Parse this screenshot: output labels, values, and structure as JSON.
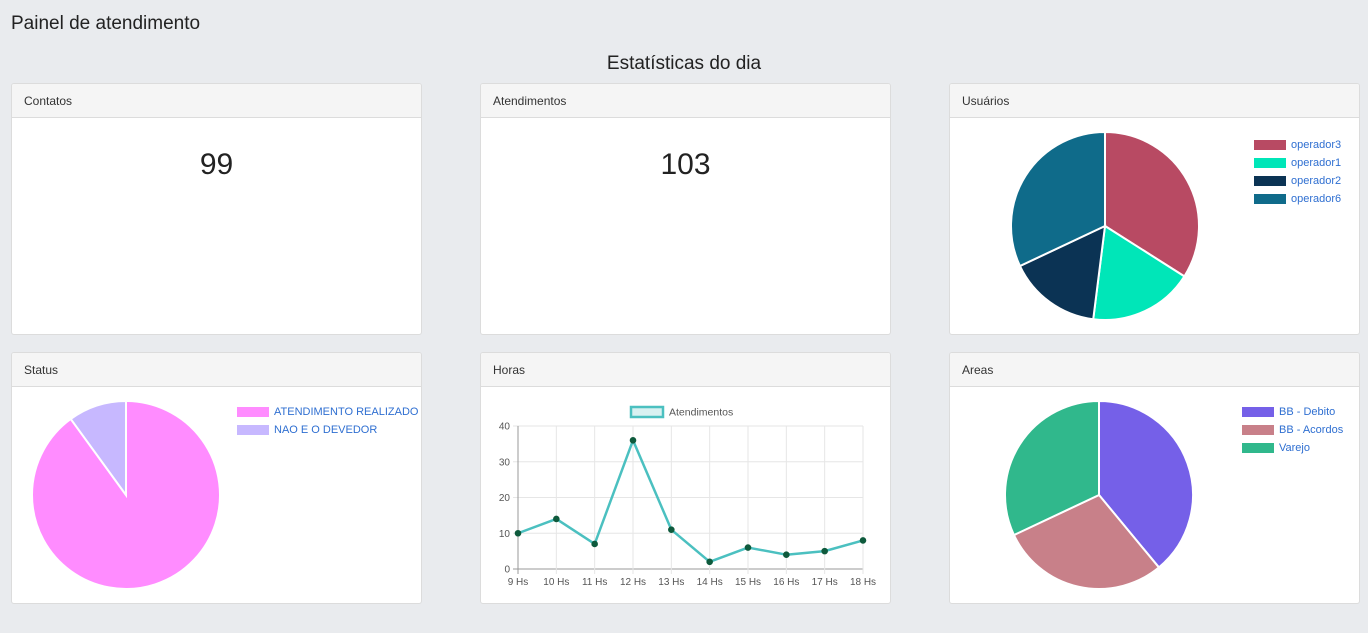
{
  "page": {
    "title": "Painel de atendimento",
    "section_title": "Estatísticas do dia"
  },
  "cards": {
    "contatos": {
      "title": "Contatos",
      "value": "99"
    },
    "atendimentos": {
      "title": "Atendimentos",
      "value": "103"
    },
    "usuarios": {
      "title": "Usuários"
    },
    "status": {
      "title": "Status"
    },
    "horas": {
      "title": "Horas"
    },
    "areas": {
      "title": "Areas"
    }
  },
  "chart_data": [
    {
      "id": "usuarios",
      "type": "pie",
      "labels": [
        "operador3",
        "operador1",
        "operador2",
        "operador6"
      ],
      "values": [
        34,
        18,
        16,
        32
      ],
      "colors": [
        "#b84a63",
        "#00e6b8",
        "#0b3354",
        "#0f6b8a"
      ],
      "legend": "right"
    },
    {
      "id": "status",
      "type": "pie",
      "labels": [
        "ATENDIMENTO REALIZADO",
        "NAO E O DEVEDOR"
      ],
      "values": [
        90,
        10
      ],
      "colors": [
        "#ff8cff",
        "#c7b8ff"
      ],
      "legend": "right"
    },
    {
      "id": "horas",
      "type": "line",
      "categories": [
        "9 Hs",
        "10 Hs",
        "11 Hs",
        "12 Hs",
        "13 Hs",
        "14 Hs",
        "15 Hs",
        "16 Hs",
        "17 Hs",
        "18 Hs"
      ],
      "series": [
        {
          "name": "Atendimentos",
          "values": [
            10,
            14,
            7,
            36,
            11,
            2,
            6,
            4,
            5,
            8
          ],
          "color": "#4bc0c0"
        }
      ],
      "ylim": [
        0,
        40
      ],
      "yticks": [
        0,
        10,
        20,
        30,
        40
      ],
      "grid": true,
      "legend": "top"
    },
    {
      "id": "areas",
      "type": "pie",
      "labels": [
        "BB - Debito",
        "BB - Acordos",
        "Varejo"
      ],
      "values": [
        39,
        29,
        32
      ],
      "colors": [
        "#7560e8",
        "#c88089",
        "#30b88c"
      ],
      "legend": "right"
    }
  ]
}
